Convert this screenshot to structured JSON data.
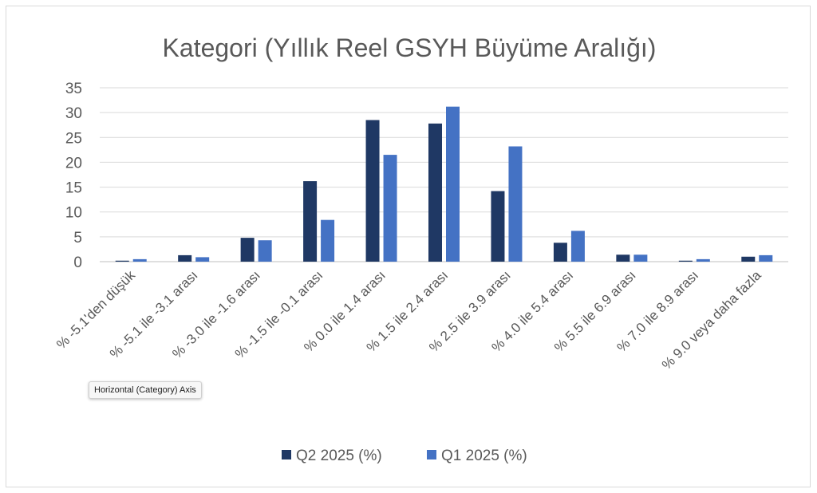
{
  "chart_data": {
    "type": "bar",
    "title": "Kategori (Yıllık Reel GSYH Büyüme Aralığı)",
    "xlabel": "",
    "ylabel": "",
    "ylim": [
      0,
      35
    ],
    "yticks": [
      "0",
      "5",
      "10",
      "15",
      "20",
      "25",
      "30",
      "35"
    ],
    "grid": true,
    "legend_position": "bottom",
    "categories": [
      "% -5.1'den düşük",
      "% -5.1 ile -3.1 arası",
      "% -3.0 ile -1.6 arası",
      "% -1.5 ile -0.1 arası",
      "% 0.0 ile 1.4 arası",
      "% 1.5 ile 2.4 arası",
      "% 2.5 ile 3.9 arası",
      "% 4.0 ile 5.4 arası",
      "% 5.5 ile 6.9 arası",
      "% 7.0 ile 8.9 arası",
      "% 9.0 veya daha fazla"
    ],
    "series": [
      {
        "name": "Q2 2025 (%)",
        "color": "#1f3864",
        "values": [
          0.2,
          1.3,
          4.8,
          16.2,
          28.5,
          27.8,
          14.2,
          3.8,
          1.4,
          0.2,
          1.0
        ]
      },
      {
        "name": "Q1 2025 (%)",
        "color": "#4472c4",
        "values": [
          0.5,
          0.9,
          4.3,
          8.4,
          21.5,
          31.2,
          23.2,
          6.2,
          1.4,
          0.5,
          1.3
        ]
      }
    ]
  },
  "tooltip": {
    "text": "Horizontal (Category) Axis"
  }
}
